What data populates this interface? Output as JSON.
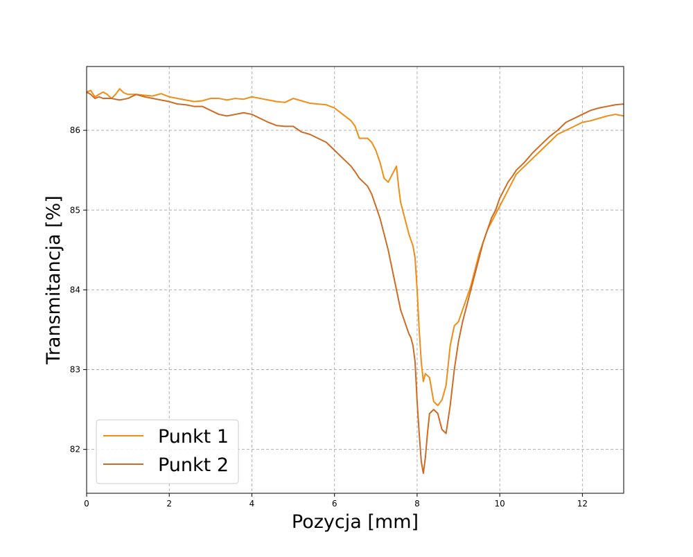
{
  "chart_data": {
    "type": "line",
    "title": "",
    "xlabel": "Pozycja [mm]",
    "ylabel": "Transmitancja [%]",
    "xlim": [
      0,
      13
    ],
    "ylim": [
      81.45,
      86.8
    ],
    "xticks": [
      0,
      2,
      4,
      6,
      8,
      10,
      12
    ],
    "yticks": [
      82,
      83,
      84,
      85,
      86
    ],
    "xtick_labels": [
      "0",
      "2",
      "4",
      "6",
      "8",
      "10",
      "12"
    ],
    "ytick_labels": [
      "82",
      "83",
      "84",
      "85",
      "86"
    ],
    "grid": true,
    "legend_position": "bottom-left",
    "series": [
      {
        "name": "Punkt 1",
        "color": "#f28c13",
        "points": [
          [
            0.0,
            86.48
          ],
          [
            0.1,
            86.5
          ],
          [
            0.2,
            86.42
          ],
          [
            0.3,
            86.45
          ],
          [
            0.4,
            86.48
          ],
          [
            0.5,
            86.45
          ],
          [
            0.6,
            86.4
          ],
          [
            0.7,
            86.45
          ],
          [
            0.8,
            86.52
          ],
          [
            0.9,
            86.47
          ],
          [
            1.0,
            86.45
          ],
          [
            1.2,
            86.45
          ],
          [
            1.4,
            86.44
          ],
          [
            1.6,
            86.43
          ],
          [
            1.8,
            86.46
          ],
          [
            2.0,
            86.42
          ],
          [
            2.2,
            86.4
          ],
          [
            2.4,
            86.38
          ],
          [
            2.6,
            86.36
          ],
          [
            2.8,
            86.37
          ],
          [
            3.0,
            86.4
          ],
          [
            3.2,
            86.4
          ],
          [
            3.4,
            86.38
          ],
          [
            3.6,
            86.4
          ],
          [
            3.8,
            86.39
          ],
          [
            4.0,
            86.42
          ],
          [
            4.2,
            86.4
          ],
          [
            4.4,
            86.38
          ],
          [
            4.6,
            86.36
          ],
          [
            4.8,
            86.35
          ],
          [
            5.0,
            86.4
          ],
          [
            5.2,
            86.37
          ],
          [
            5.4,
            86.34
          ],
          [
            5.6,
            86.33
          ],
          [
            5.8,
            86.32
          ],
          [
            6.0,
            86.28
          ],
          [
            6.2,
            86.2
          ],
          [
            6.4,
            86.12
          ],
          [
            6.5,
            86.05
          ],
          [
            6.6,
            85.9
          ],
          [
            6.7,
            85.9
          ],
          [
            6.8,
            85.9
          ],
          [
            6.9,
            85.85
          ],
          [
            7.0,
            85.75
          ],
          [
            7.1,
            85.6
          ],
          [
            7.2,
            85.4
          ],
          [
            7.3,
            85.35
          ],
          [
            7.4,
            85.45
          ],
          [
            7.5,
            85.55
          ],
          [
            7.55,
            85.3
          ],
          [
            7.6,
            85.1
          ],
          [
            7.7,
            84.9
          ],
          [
            7.8,
            84.7
          ],
          [
            7.9,
            84.55
          ],
          [
            7.95,
            84.4
          ],
          [
            8.0,
            84.0
          ],
          [
            8.05,
            83.5
          ],
          [
            8.1,
            83.1
          ],
          [
            8.15,
            82.85
          ],
          [
            8.2,
            82.95
          ],
          [
            8.3,
            82.9
          ],
          [
            8.4,
            82.6
          ],
          [
            8.5,
            82.55
          ],
          [
            8.6,
            82.62
          ],
          [
            8.7,
            82.8
          ],
          [
            8.8,
            83.3
          ],
          [
            8.9,
            83.55
          ],
          [
            9.0,
            83.6
          ],
          [
            9.1,
            83.75
          ],
          [
            9.2,
            83.9
          ],
          [
            9.3,
            84.05
          ],
          [
            9.4,
            84.25
          ],
          [
            9.5,
            84.45
          ],
          [
            9.6,
            84.6
          ],
          [
            9.7,
            84.75
          ],
          [
            9.8,
            84.85
          ],
          [
            9.9,
            84.95
          ],
          [
            10.0,
            85.05
          ],
          [
            10.1,
            85.15
          ],
          [
            10.2,
            85.25
          ],
          [
            10.3,
            85.35
          ],
          [
            10.4,
            85.45
          ],
          [
            10.6,
            85.55
          ],
          [
            10.8,
            85.65
          ],
          [
            11.0,
            85.75
          ],
          [
            11.2,
            85.85
          ],
          [
            11.4,
            85.95
          ],
          [
            11.6,
            86.0
          ],
          [
            11.8,
            86.05
          ],
          [
            12.0,
            86.1
          ],
          [
            12.2,
            86.12
          ],
          [
            12.4,
            86.15
          ],
          [
            12.6,
            86.18
          ],
          [
            12.8,
            86.2
          ],
          [
            13.0,
            86.18
          ]
        ]
      },
      {
        "name": "Punkt 2",
        "color": "#cd6b23",
        "points": [
          [
            0.0,
            86.48
          ],
          [
            0.1,
            86.45
          ],
          [
            0.2,
            86.4
          ],
          [
            0.3,
            86.42
          ],
          [
            0.4,
            86.4
          ],
          [
            0.6,
            86.4
          ],
          [
            0.8,
            86.38
          ],
          [
            1.0,
            86.4
          ],
          [
            1.2,
            86.45
          ],
          [
            1.4,
            86.42
          ],
          [
            1.6,
            86.4
          ],
          [
            1.8,
            86.38
          ],
          [
            2.0,
            86.36
          ],
          [
            2.2,
            86.33
          ],
          [
            2.4,
            86.32
          ],
          [
            2.6,
            86.3
          ],
          [
            2.8,
            86.3
          ],
          [
            3.0,
            86.25
          ],
          [
            3.2,
            86.2
          ],
          [
            3.4,
            86.18
          ],
          [
            3.6,
            86.2
          ],
          [
            3.8,
            86.22
          ],
          [
            4.0,
            86.2
          ],
          [
            4.2,
            86.15
          ],
          [
            4.4,
            86.1
          ],
          [
            4.6,
            86.06
          ],
          [
            4.8,
            86.05
          ],
          [
            5.0,
            86.05
          ],
          [
            5.2,
            85.98
          ],
          [
            5.4,
            85.95
          ],
          [
            5.6,
            85.9
          ],
          [
            5.8,
            85.85
          ],
          [
            6.0,
            85.75
          ],
          [
            6.2,
            85.65
          ],
          [
            6.4,
            85.55
          ],
          [
            6.5,
            85.48
          ],
          [
            6.6,
            85.4
          ],
          [
            6.7,
            85.35
          ],
          [
            6.8,
            85.3
          ],
          [
            6.9,
            85.2
          ],
          [
            7.0,
            85.05
          ],
          [
            7.1,
            84.9
          ],
          [
            7.2,
            84.7
          ],
          [
            7.3,
            84.5
          ],
          [
            7.4,
            84.25
          ],
          [
            7.5,
            84.0
          ],
          [
            7.6,
            83.75
          ],
          [
            7.7,
            83.6
          ],
          [
            7.8,
            83.45
          ],
          [
            7.85,
            83.4
          ],
          [
            7.9,
            83.3
          ],
          [
            7.95,
            83.1
          ],
          [
            8.0,
            82.6
          ],
          [
            8.05,
            82.2
          ],
          [
            8.1,
            81.85
          ],
          [
            8.15,
            81.7
          ],
          [
            8.2,
            81.9
          ],
          [
            8.25,
            82.2
          ],
          [
            8.3,
            82.45
          ],
          [
            8.4,
            82.5
          ],
          [
            8.5,
            82.45
          ],
          [
            8.6,
            82.25
          ],
          [
            8.7,
            82.2
          ],
          [
            8.8,
            82.55
          ],
          [
            8.9,
            83.0
          ],
          [
            9.0,
            83.35
          ],
          [
            9.1,
            83.6
          ],
          [
            9.2,
            83.8
          ],
          [
            9.3,
            84.0
          ],
          [
            9.4,
            84.2
          ],
          [
            9.5,
            84.4
          ],
          [
            9.6,
            84.6
          ],
          [
            9.7,
            84.75
          ],
          [
            9.8,
            84.9
          ],
          [
            9.9,
            85.0
          ],
          [
            10.0,
            85.15
          ],
          [
            10.1,
            85.25
          ],
          [
            10.2,
            85.35
          ],
          [
            10.3,
            85.42
          ],
          [
            10.4,
            85.5
          ],
          [
            10.6,
            85.6
          ],
          [
            10.8,
            85.72
          ],
          [
            11.0,
            85.82
          ],
          [
            11.2,
            85.92
          ],
          [
            11.4,
            86.0
          ],
          [
            11.6,
            86.1
          ],
          [
            11.8,
            86.15
          ],
          [
            12.0,
            86.2
          ],
          [
            12.2,
            86.25
          ],
          [
            12.4,
            86.28
          ],
          [
            12.6,
            86.3
          ],
          [
            12.8,
            86.32
          ],
          [
            13.0,
            86.33
          ]
        ]
      }
    ]
  }
}
